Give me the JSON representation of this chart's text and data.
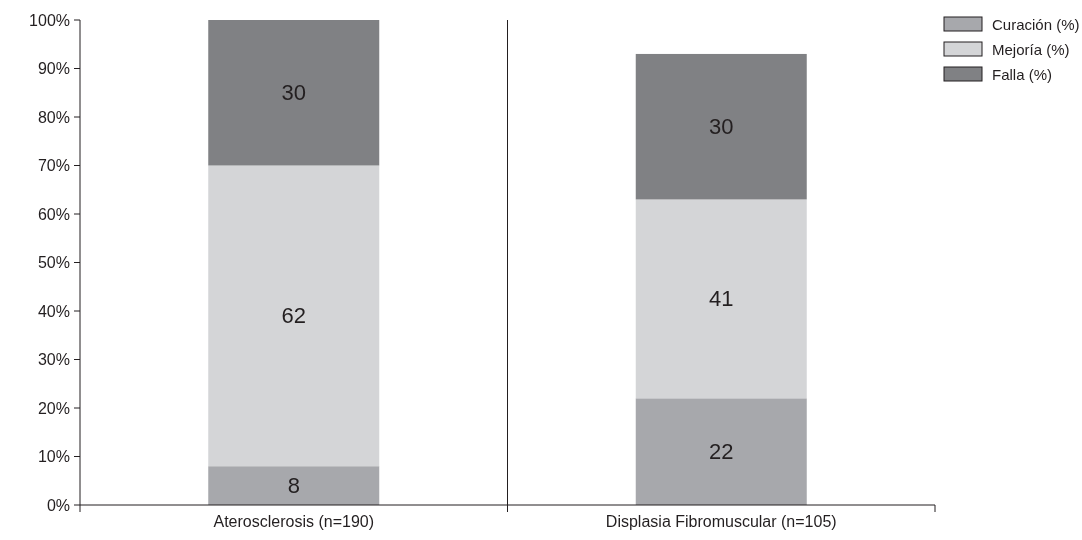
{
  "chart_data": {
    "type": "bar",
    "stacked": true,
    "categories": [
      "Aterosclerosis (n=190)",
      "Displasia Fibromuscular (n=105)"
    ],
    "series": [
      {
        "name": "Curación (%)",
        "color": "#a7a8ac",
        "values": [
          8,
          22
        ]
      },
      {
        "name": "Mejoría (%)",
        "color": "#d4d5d7",
        "values": [
          62,
          41
        ]
      },
      {
        "name": "Falla (%)",
        "color": "#808184",
        "values": [
          30,
          30
        ]
      }
    ],
    "data_labels": true,
    "ylim": [
      0,
      100
    ],
    "yticks": [
      {
        "value": 0,
        "label": "0%"
      },
      {
        "value": 10,
        "label": "10%"
      },
      {
        "value": 20,
        "label": "20%"
      },
      {
        "value": 30,
        "label": "30%"
      },
      {
        "value": 40,
        "label": "40%"
      },
      {
        "value": 50,
        "label": "50%"
      },
      {
        "value": 60,
        "label": "60%"
      },
      {
        "value": 70,
        "label": "70%"
      },
      {
        "value": 80,
        "label": "80%"
      },
      {
        "value": 90,
        "label": "90%"
      },
      {
        "value": 100,
        "label": "100%"
      }
    ],
    "grid": false,
    "legend": "top right"
  }
}
